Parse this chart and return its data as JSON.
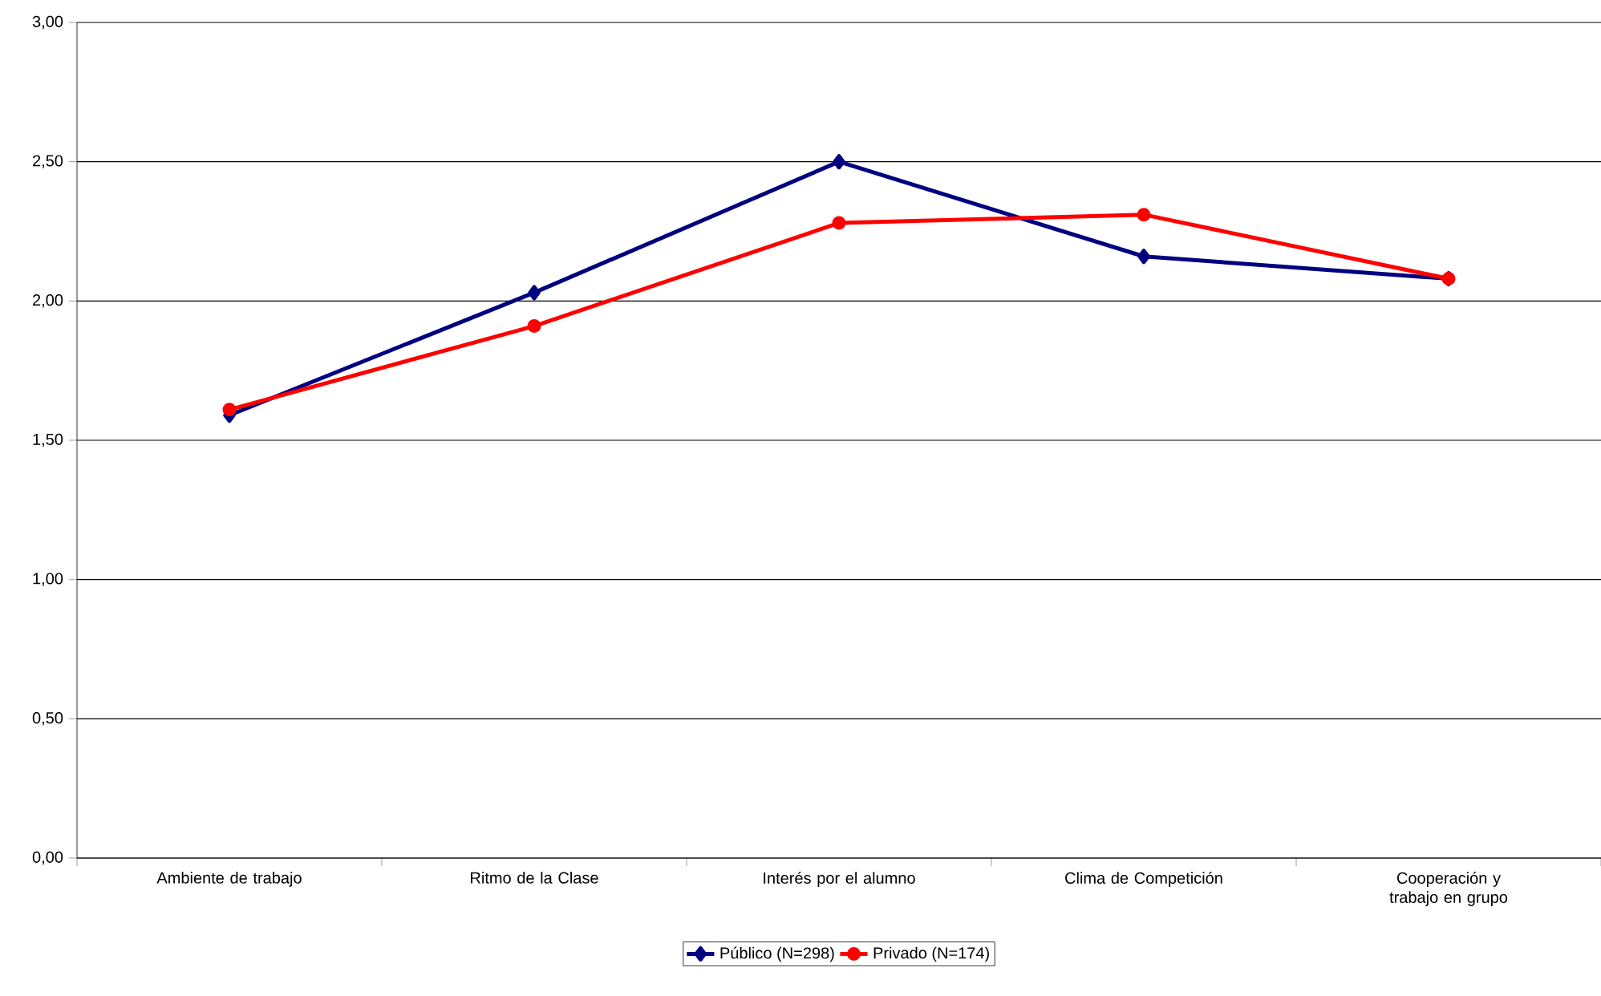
{
  "chart_data": {
    "type": "line",
    "categories": [
      "Ambiente de trabajo",
      "Ritmo de la Clase",
      "Interés por el alumno",
      "Clima de Competición",
      "Cooperación y trabajo en grupo"
    ],
    "series": [
      {
        "name": "Público (N=298)",
        "color": "#000080",
        "marker": "diamond",
        "values": [
          1.59,
          2.03,
          2.5,
          2.16,
          2.08
        ]
      },
      {
        "name": "Privado (N=174)",
        "color": "#ff0000",
        "marker": "circle",
        "values": [
          1.61,
          1.91,
          2.28,
          2.31,
          2.08
        ]
      }
    ],
    "ylim": [
      0,
      3
    ],
    "yticks": [
      {
        "value": 0,
        "label": "0,00"
      },
      {
        "value": 0.5,
        "label": "0,50"
      },
      {
        "value": 1,
        "label": "1,00"
      },
      {
        "value": 1.5,
        "label": "1,50"
      },
      {
        "value": 2,
        "label": "2,00"
      },
      {
        "value": 2.5,
        "label": "2,50"
      },
      {
        "value": 3,
        "label": "3,00"
      }
    ],
    "grid": "y",
    "legend": "bottom",
    "line_style": "solid"
  }
}
